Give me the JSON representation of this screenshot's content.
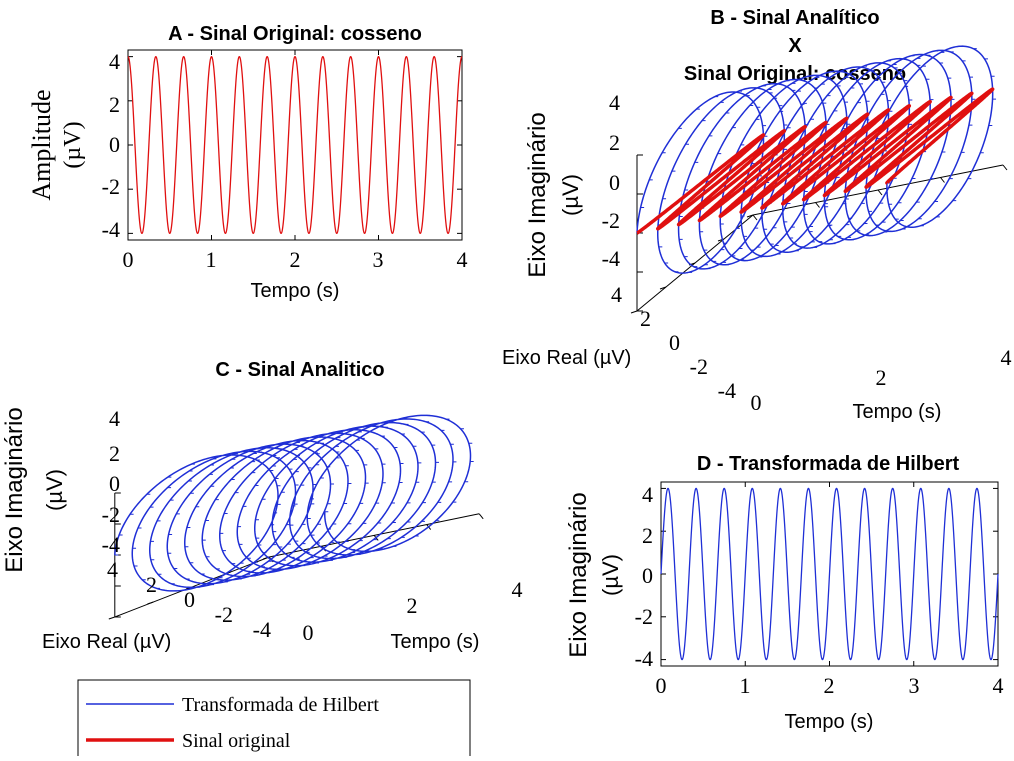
{
  "chart_data": [
    {
      "panel": "A",
      "type": "line",
      "title": "A - Sinal Original: cosseno",
      "xlabel": "Tempo (s)",
      "ylabel_line1": "Amplitude",
      "ylabel_line2": "(µV)",
      "xlim": [
        0,
        4
      ],
      "ylim": [
        -4.3,
        4.3
      ],
      "xticks": [
        "0",
        "1",
        "2",
        "3",
        "4"
      ],
      "yticks": [
        "4",
        "2",
        "0",
        "-2",
        "-4"
      ],
      "series": [
        {
          "function": "cos",
          "amplitude": 4,
          "frequency_hz": 3,
          "t_start": 0,
          "t_end": 4,
          "color": "#e01010"
        }
      ]
    },
    {
      "panel": "B",
      "type": "line3d",
      "title_line1": "B - Sinal Analítico",
      "title_line2": "X",
      "title_line3": "Sinal Original: cosseno",
      "xlabel": "Tempo (s)",
      "ylabel": "Eixo Real (µV)",
      "zlabel_line1": "Eixo Imaginário",
      "zlabel_line2": "(µV)",
      "time_ticks": [
        "0",
        "2",
        "4"
      ],
      "real_ticks": [
        "4",
        "2",
        "0",
        "-2",
        "-4"
      ],
      "imag_ticks": [
        "4",
        "2",
        "0",
        "-2",
        "-4"
      ],
      "series": [
        {
          "name": "Transformada de Hilbert",
          "kind": "helix",
          "amplitude": 4,
          "frequency_hz": 3,
          "color": "#1f2fd6"
        },
        {
          "name": "Sinal original",
          "kind": "planar-cosine",
          "amplitude": 4,
          "frequency_hz": 3,
          "color": "#e01010"
        }
      ]
    },
    {
      "panel": "C",
      "type": "line3d",
      "title": "C - Sinal Analitico",
      "xlabel": "Tempo (s)",
      "ylabel": "Eixo Real (µV)",
      "zlabel_line1": "Eixo Imaginário",
      "zlabel_line2": "(µV)",
      "time_ticks": [
        "0",
        "2",
        "4"
      ],
      "real_ticks": [
        "4",
        "2",
        "0",
        "-2",
        "-4"
      ],
      "imag_ticks": [
        "4",
        "2",
        "0",
        "-2",
        "-4"
      ],
      "series": [
        {
          "kind": "helix",
          "amplitude": 4,
          "frequency_hz": 3,
          "color": "#1f2fd6"
        }
      ]
    },
    {
      "panel": "D",
      "type": "line",
      "title": "D - Transformada de Hilbert",
      "xlabel": "Tempo (s)",
      "ylabel_line1": "Eixo Imaginário",
      "ylabel_line2": "(µV)",
      "xlim": [
        0,
        4
      ],
      "ylim": [
        -4.3,
        4.3
      ],
      "xticks": [
        "0",
        "1",
        "2",
        "3",
        "4"
      ],
      "yticks": [
        "4",
        "2",
        "0",
        "-2",
        "-4"
      ],
      "series": [
        {
          "function": "sin",
          "amplitude": 4,
          "frequency_hz": 3,
          "t_start": 0,
          "t_end": 4,
          "color": "#1f2fd6"
        }
      ]
    }
  ],
  "legend": {
    "placement": "bottom-left",
    "items": [
      {
        "label": "Transformada de Hilbert",
        "color": "#1f2fd6"
      },
      {
        "label": "Sinal original",
        "color": "#e01010"
      }
    ]
  }
}
